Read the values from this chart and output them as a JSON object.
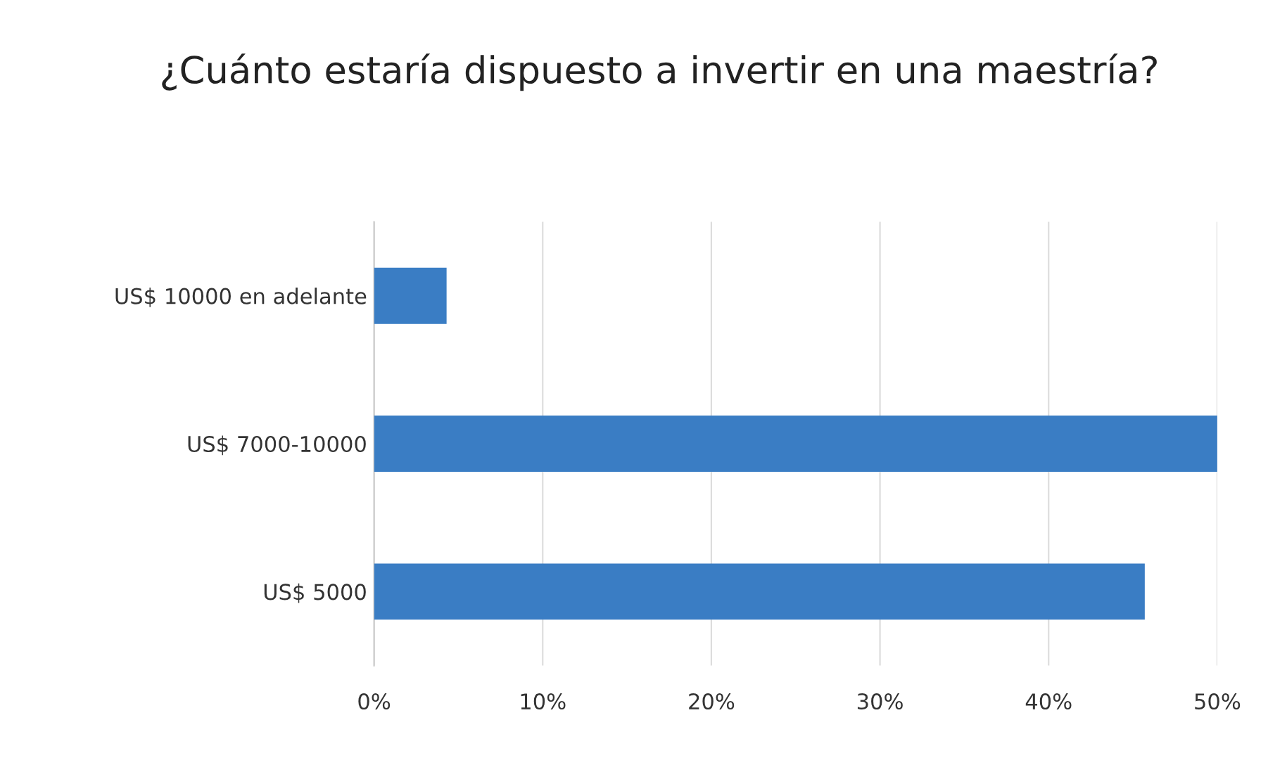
{
  "chart_data": {
    "type": "bar",
    "orientation": "horizontal",
    "title": "¿Cuánto estaría dispuesto a invertir en una maestría?",
    "categories": [
      "US$ 10000 en adelante",
      "US$ 7000-10000",
      "US$ 5000"
    ],
    "values": [
      4.3,
      50,
      45.7
    ],
    "color": "#3a7dc4",
    "xlim": [
      0,
      50
    ],
    "xticks": [
      {
        "value": 0,
        "label": "0%"
      },
      {
        "value": 10,
        "label": "10%"
      },
      {
        "value": 20,
        "label": "20%"
      },
      {
        "value": 30,
        "label": "30%"
      },
      {
        "value": 40,
        "label": "40%"
      },
      {
        "value": 50,
        "label": "50%"
      }
    ],
    "grid": "x",
    "legend": false
  }
}
